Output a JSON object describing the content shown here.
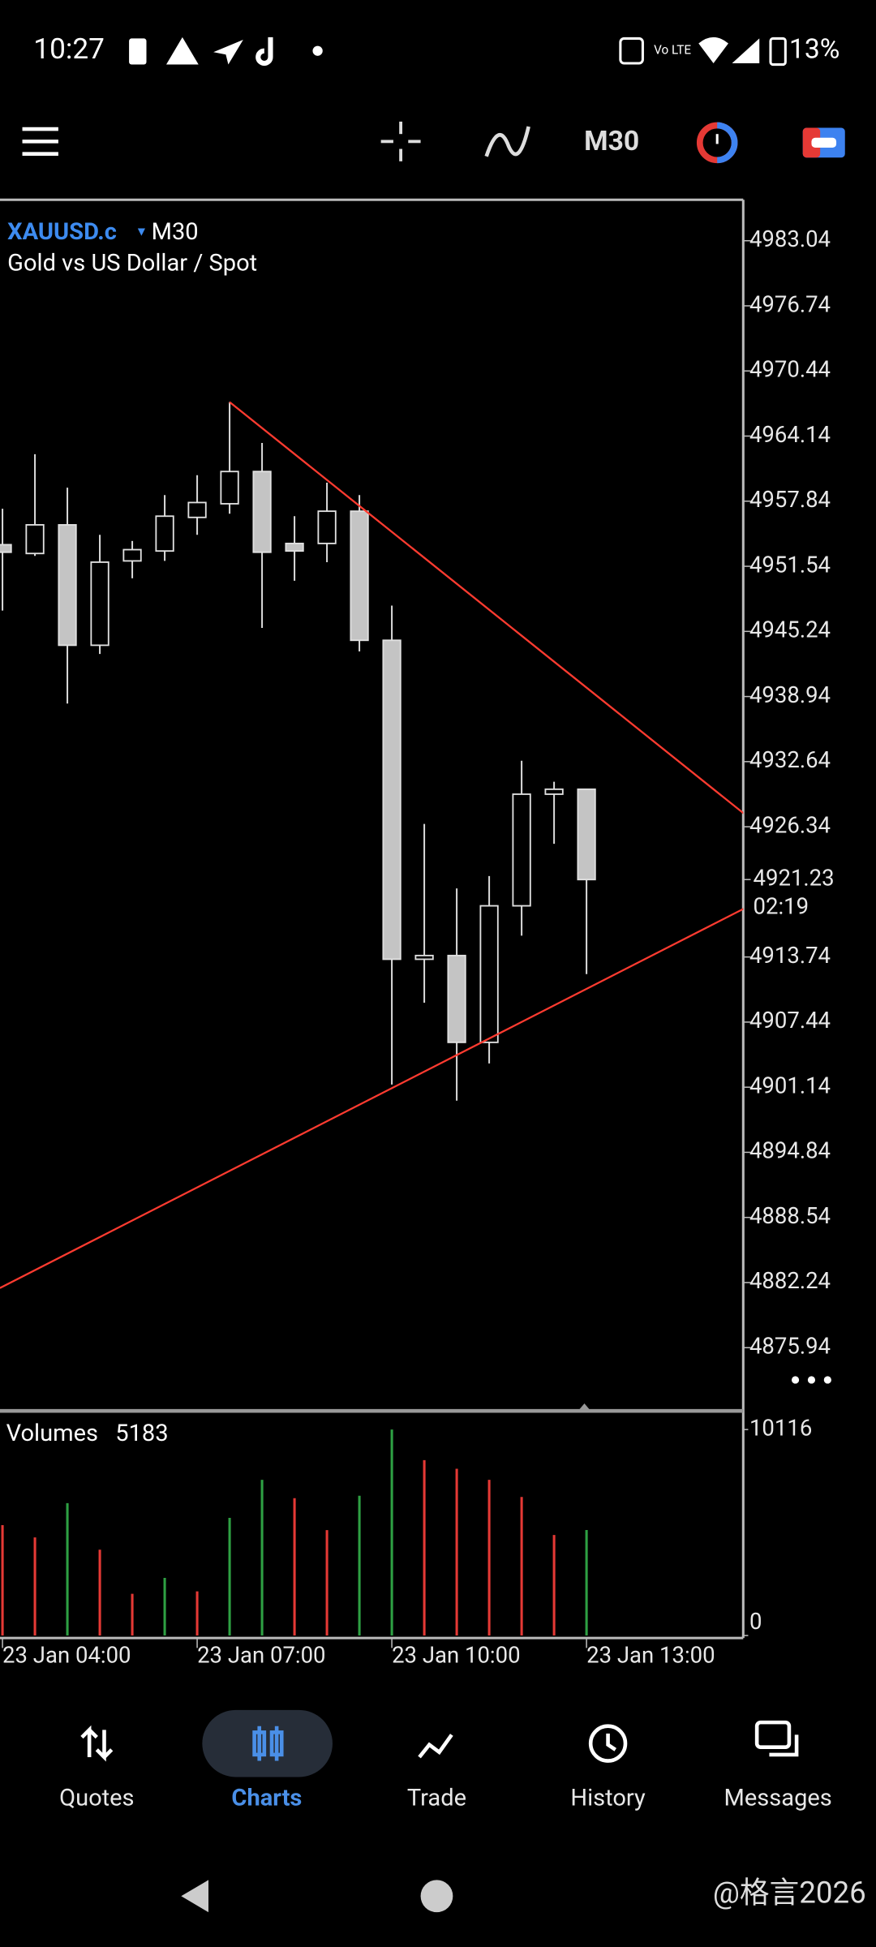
{
  "status_bar": {
    "time": "10:27",
    "battery": "13%"
  },
  "toolbar": {
    "timeframe": "M30"
  },
  "chart_data": {
    "type": "candlestick",
    "symbol": "XAUUSD.c",
    "timeframe": "M30",
    "description": "Gold vs US Dollar / Spot",
    "categories": [
      "23 Jan 04:00",
      null,
      null,
      null,
      null,
      null,
      "23 Jan 07:00",
      null,
      null,
      null,
      null,
      null,
      "23 Jan 10:00",
      null,
      null,
      null,
      null,
      null,
      "23 Jan 13:00"
    ],
    "open": [
      4953.63,
      4952.78,
      4955.55,
      4943.9,
      4952.06,
      4953.02,
      4956.27,
      4957.59,
      4960.71,
      4953.75,
      4953.75,
      4956.87,
      4944.38,
      4913.52,
      4913.88,
      4905.48,
      4918.69,
      4929.49,
      4929.97
    ],
    "high": [
      4957.11,
      4962.39,
      4959.15,
      4954.59,
      4953.99,
      4958.43,
      4960.35,
      4967.43,
      4963.47,
      4956.39,
      4959.63,
      4958.43,
      4947.74,
      4926.61,
      4920.37,
      4921.57,
      4932.73,
      4930.69,
      4929.97
    ],
    "low": [
      4947.26,
      4952.54,
      4938.26,
      4943.06,
      4950.38,
      4952.06,
      4954.59,
      4956.63,
      4945.58,
      4950.14,
      4951.94,
      4943.3,
      4901.4,
      4909.32,
      4899.84,
      4903.44,
      4915.8,
      4924.69,
      4912.08
    ],
    "close": [
      4952.9,
      4955.55,
      4943.9,
      4951.94,
      4953.15,
      4956.39,
      4957.71,
      4960.71,
      4952.9,
      4953.02,
      4956.87,
      4944.38,
      4913.52,
      4913.88,
      4905.48,
      4918.69,
      4929.49,
      4929.97,
      4921.23
    ],
    "up_color": "#000000",
    "down_color": "#c4c4c4",
    "ylim": [
      4869.82,
      4986.88
    ],
    "yticks": [
      4983.04,
      4976.74,
      4970.44,
      4964.14,
      4957.84,
      4951.54,
      4945.24,
      4938.94,
      4932.64,
      4926.34,
      4913.74,
      4907.44,
      4901.14,
      4894.84,
      4888.54,
      4882.24,
      4875.94
    ],
    "countdown": "02:19",
    "trendline_color": "#ff3b30",
    "trendlines": [
      {
        "from": [
          7,
          4967.43
        ],
        "to": [
          22.87,
          4927.57
        ]
      },
      {
        "from": [
          -0.08,
          4881.71
        ],
        "to": [
          22.87,
          4918.45
        ]
      }
    ],
    "volume": {
      "title": "Volumes",
      "values": [
        5419,
        4817,
        6503,
        4215,
        2047,
        2830,
        2168,
        5781,
        7647,
        6744,
        5178,
        6865,
        10116,
        8611,
        8189,
        7647,
        6804,
        4938,
        5183
      ],
      "colors": [
        "#e53935",
        "#e53935",
        "#2ea043",
        "#e53935",
        "#e53935",
        "#2ea043",
        "#e53935",
        "#2ea043",
        "#2ea043",
        "#e53935",
        "#e53935",
        "#2ea043",
        "#2ea043",
        "#e53935",
        "#e53935",
        "#e53935",
        "#e53935",
        "#e53935",
        "#2ea043"
      ],
      "ylim": [
        0,
        10116
      ],
      "yticks": [
        10116,
        0
      ]
    }
  },
  "nav": {
    "items": [
      "Quotes",
      "Charts",
      "Trade",
      "History",
      "Messages"
    ]
  },
  "watermark": "@格言2026"
}
